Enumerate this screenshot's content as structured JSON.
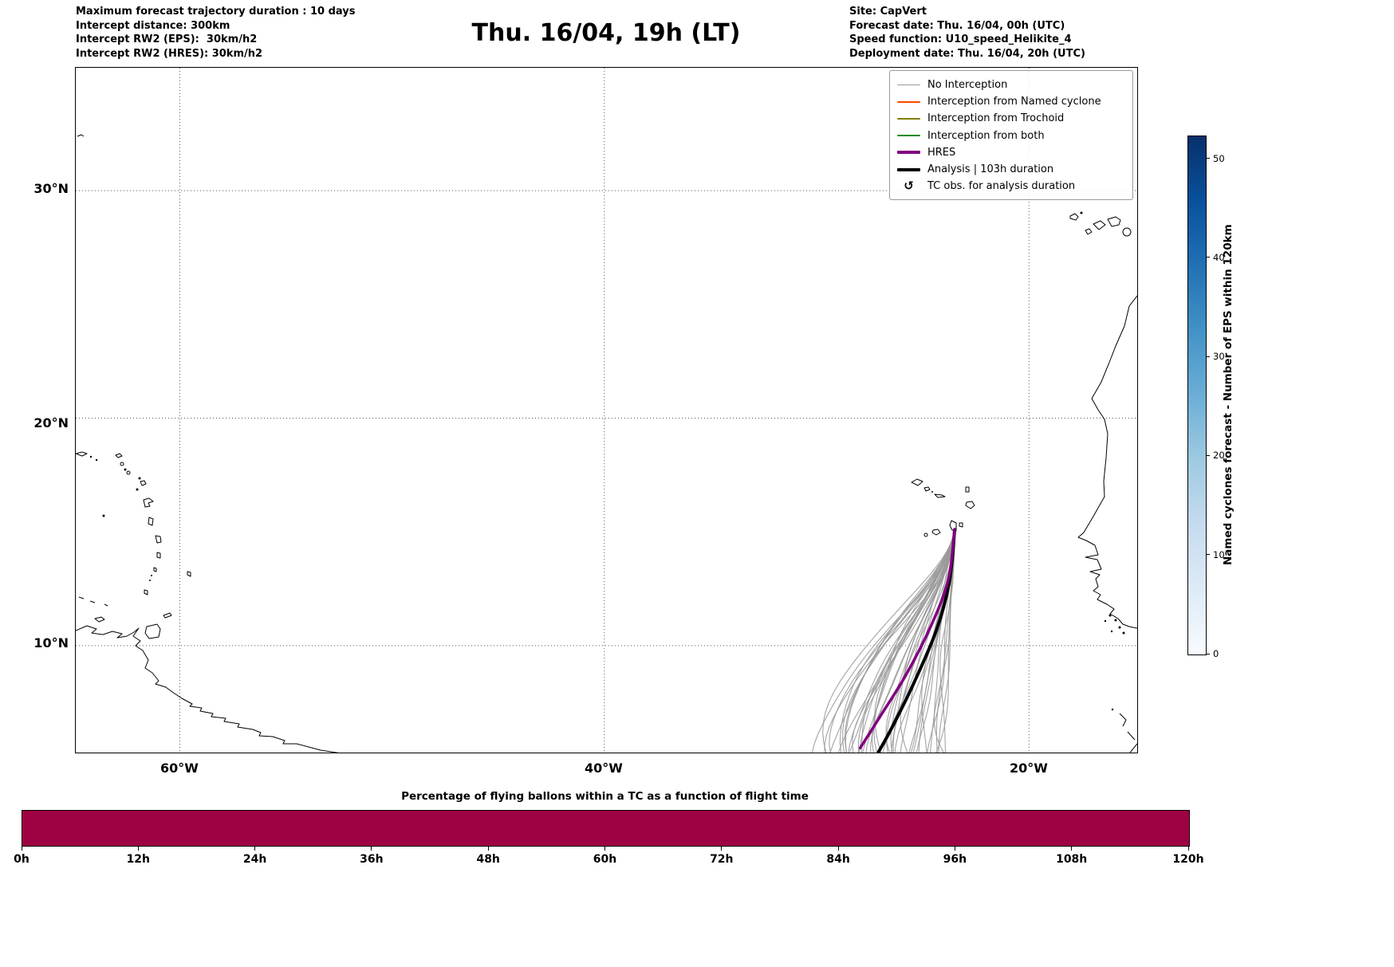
{
  "header": {
    "left_lines": [
      "Maximum forecast trajectory duration : 10 days",
      "Intercept distance: 300km",
      "Intercept RW2 (EPS):  30km/h2",
      "Intercept RW2 (HRES): 30km/h2"
    ],
    "title": "Thu. 16/04, 19h (LT)",
    "right_lines": [
      "Site: CapVert",
      "Forecast date: Thu. 16/04, 00h (UTC)",
      "Speed function: U10_speed_Helikite_4",
      "Deployment date: Thu. 16/04, 20h (UTC)"
    ]
  },
  "map": {
    "lat_tick_labels": [
      "30°N",
      "20°N",
      "10°N"
    ],
    "lon_tick_labels": [
      "60°W",
      "40°W",
      "20°W"
    ],
    "legend_items": [
      {
        "label": "No Interception",
        "color": "#9a9a9a",
        "lw": 1.5
      },
      {
        "label": "Interception from Named cyclone",
        "color": "#ff4500",
        "lw": 1.5
      },
      {
        "label": "Interception from Trochoid",
        "color": "#808000",
        "lw": 1.5
      },
      {
        "label": "Interception from both",
        "color": "#228b22",
        "lw": 1.5
      },
      {
        "label": "HRES",
        "color": "#800080",
        "lw": 4
      },
      {
        "label": "Analysis | 103h duration",
        "color": "#000000",
        "lw": 4
      },
      {
        "label": "TC obs. for analysis duration",
        "symbol": "↺"
      }
    ]
  },
  "colorbar": {
    "label": "Named cyclones forecast - Number of EPS within 120km",
    "ticks": [
      0,
      10,
      20,
      30,
      40,
      50
    ],
    "vmax_visual": 52.3,
    "colormap": "Blues",
    "stops": [
      "#f7fbff",
      "#deebf7",
      "#c6dbef",
      "#9ecae1",
      "#6baed6",
      "#4292c6",
      "#2171b5",
      "#08519c",
      "#08306b"
    ]
  },
  "chart_data": [
    {
      "type": "scatter",
      "subtype": "trajectory-map",
      "title": "Thu. 16/04, 19h (LT)",
      "extent": {
        "lon": [
          -64.9,
          -14.9
        ],
        "lat": [
          5.3,
          35.4
        ]
      },
      "grid": {
        "lon_ticks": [
          -60,
          -40,
          -20
        ],
        "lat_ticks": [
          30,
          20,
          10
        ],
        "style": "dotted"
      },
      "deployment_site": {
        "name": "CapVert",
        "lon": -23.5,
        "lat": 15.1
      },
      "eps_trajectories": {
        "count": 44,
        "status": "No Interception",
        "color": "#9a9a9a",
        "start": {
          "lon": -23.5,
          "lat": 15.1
        },
        "end_lat": 5.3,
        "end_lon_range": [
          -29.9,
          -23.9
        ]
      },
      "hres_trajectory": {
        "name": "HRES",
        "color": "#800080",
        "points": [
          [
            -23.5,
            15.1
          ],
          [
            -23.8,
            12.9
          ],
          [
            -24.6,
            10.9
          ],
          [
            -25.8,
            8.7
          ],
          [
            -27.0,
            6.9
          ],
          [
            -27.95,
            5.5
          ]
        ]
      },
      "analysis_trajectory": {
        "name": "Analysis | 103h duration",
        "color": "#000000",
        "points": [
          [
            -23.5,
            15.1
          ],
          [
            -23.75,
            12.8
          ],
          [
            -24.35,
            10.7
          ],
          [
            -25.4,
            8.4
          ],
          [
            -26.45,
            6.4
          ],
          [
            -27.1,
            5.3
          ]
        ]
      }
    },
    {
      "type": "heatmap",
      "title": "Percentage of flying ballons within a TC as a function of flight time",
      "x_hours": [
        0,
        12,
        24,
        36,
        48,
        60,
        72,
        84,
        96,
        108,
        120
      ],
      "x_tick_labels": [
        "0h",
        "12h",
        "24h",
        "36h",
        "48h",
        "60h",
        "72h",
        "84h",
        "96h",
        "108h",
        "120h"
      ],
      "values_percent": [
        0,
        0,
        0,
        0,
        0,
        0,
        0,
        0,
        0,
        0,
        0
      ],
      "fill_color": "#9e0142"
    }
  ]
}
